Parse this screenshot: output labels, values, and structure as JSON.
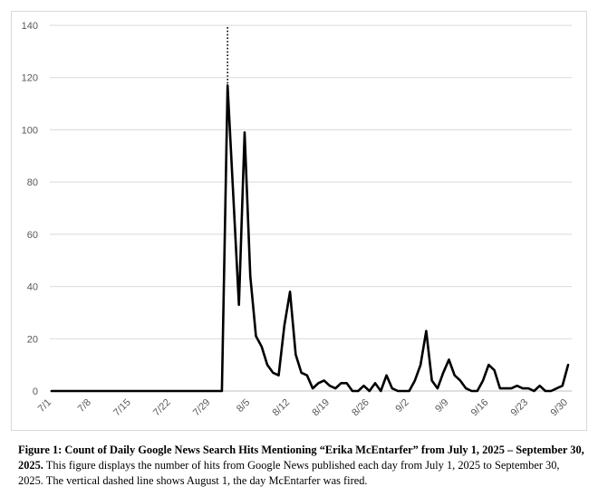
{
  "chart_data": {
    "type": "line",
    "title": "",
    "xlabel": "",
    "ylabel": "",
    "ylim": [
      0,
      140
    ],
    "yticks": [
      0,
      20,
      40,
      60,
      80,
      100,
      120,
      140
    ],
    "grid": true,
    "legend": "none",
    "x": [
      "7/1",
      "7/2",
      "7/3",
      "7/4",
      "7/5",
      "7/6",
      "7/7",
      "7/8",
      "7/9",
      "7/10",
      "7/11",
      "7/12",
      "7/13",
      "7/14",
      "7/15",
      "7/16",
      "7/17",
      "7/18",
      "7/19",
      "7/20",
      "7/21",
      "7/22",
      "7/23",
      "7/24",
      "7/25",
      "7/26",
      "7/27",
      "7/28",
      "7/29",
      "7/30",
      "7/31",
      "8/1",
      "8/2",
      "8/3",
      "8/4",
      "8/5",
      "8/6",
      "8/7",
      "8/8",
      "8/9",
      "8/10",
      "8/11",
      "8/12",
      "8/13",
      "8/14",
      "8/15",
      "8/16",
      "8/17",
      "8/18",
      "8/19",
      "8/20",
      "8/21",
      "8/22",
      "8/23",
      "8/24",
      "8/25",
      "8/26",
      "8/27",
      "8/28",
      "8/29",
      "8/30",
      "8/31",
      "9/1",
      "9/2",
      "9/3",
      "9/4",
      "9/5",
      "9/6",
      "9/7",
      "9/8",
      "9/9",
      "9/10",
      "9/11",
      "9/12",
      "9/13",
      "9/14",
      "9/15",
      "9/16",
      "9/17",
      "9/18",
      "9/19",
      "9/20",
      "9/21",
      "9/22",
      "9/23",
      "9/24",
      "9/25",
      "9/26",
      "9/27",
      "9/28",
      "9/29",
      "9/30"
    ],
    "xtick_labels": [
      "7/1",
      "7/8",
      "7/15",
      "7/22",
      "7/29",
      "8/5",
      "8/12",
      "8/19",
      "8/26",
      "9/2",
      "9/9",
      "9/16",
      "9/23",
      "9/30"
    ],
    "series": [
      {
        "values": [
          0,
          0,
          0,
          0,
          0,
          0,
          0,
          0,
          0,
          0,
          0,
          0,
          0,
          0,
          0,
          0,
          0,
          0,
          0,
          0,
          0,
          0,
          0,
          0,
          0,
          0,
          0,
          0,
          0,
          0,
          0,
          117,
          75,
          33,
          99,
          44,
          21,
          17,
          10,
          7,
          6,
          25,
          38,
          14,
          7,
          6,
          1,
          3,
          4,
          2,
          1,
          3,
          3,
          0,
          0,
          2,
          0,
          3,
          0,
          6,
          1,
          0,
          0,
          0,
          4,
          10,
          23,
          4,
          1,
          7,
          12,
          6,
          4,
          1,
          0,
          0,
          4,
          10,
          8,
          1,
          1,
          1,
          2,
          1,
          1,
          0,
          2,
          0,
          0,
          1,
          2,
          10
        ],
        "color": "#000000"
      }
    ],
    "vline": {
      "x": "8/1",
      "style": "dotted",
      "color": "#000000"
    }
  },
  "caption": {
    "bold": "Figure 1: Count of Daily Google News Search Hits Mentioning “Erika McEntarfer” from July 1, 2025 – September 30, 2025.",
    "text": " This figure displays the number of hits from Google News published each day from July 1, 2025 to September 30, 2025. The vertical dashed line shows August 1, the day McEntarfer was fired."
  }
}
